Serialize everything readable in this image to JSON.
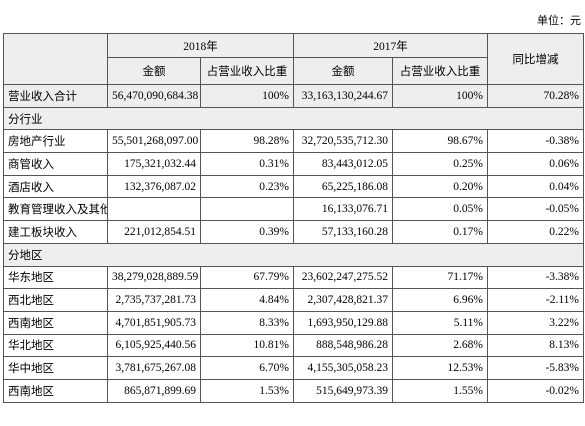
{
  "unit": "单位：元",
  "table": {
    "header": {
      "item": null,
      "year_2018": "2018年",
      "year_2017": "2017年",
      "yoy": "同比增减",
      "amount_2018": "金额",
      "share_2018": "占营业收入比重",
      "amount_2017": "金额",
      "share_2017": "占营业收入比重"
    },
    "rows": [
      [
        "营业收入合计",
        "56,470,090,684.38",
        "100%",
        "33,163,130,244.67",
        "100%",
        "70.28%"
      ],
      [
        "分行业"
      ],
      [
        "房地产行业",
        "55,501,268,097.00",
        "98.28%",
        "32,720,535,712.30",
        "98.67%",
        "-0.38%"
      ],
      [
        "商管收入",
        "175,321,032.44",
        "0.31%",
        "83,443,012.05",
        "0.25%",
        "0.06%"
      ],
      [
        "酒店收入",
        "132,376,087.02",
        "0.23%",
        "65,225,186.08",
        "0.20%",
        "0.04%"
      ],
      [
        "教育管理收入及其他",
        null,
        null,
        "16,133,076.71",
        "0.05%",
        "-0.05%"
      ],
      [
        "建工板块收入",
        "221,012,854.51",
        "0.39%",
        "57,133,160.28",
        "0.17%",
        "0.22%"
      ],
      [
        "分地区"
      ],
      [
        "华东地区",
        "38,279,028,889.59",
        "67.79%",
        "23,602,247,275.52",
        "71.17%",
        "-3.38%"
      ],
      [
        "西北地区",
        "2,735,737,281.73",
        "4.84%",
        "2,307,428,821.37",
        "6.96%",
        "-2.11%"
      ],
      [
        "西南地区",
        "4,701,851,905.73",
        "8.33%",
        "1,693,950,129.88",
        "5.11%",
        "3.22%"
      ],
      [
        "华北地区",
        "6,105,925,440.56",
        "10.81%",
        "888,548,986.28",
        "2.68%",
        "8.13%"
      ],
      [
        "华中地区",
        "3,781,675,267.08",
        "6.70%",
        "4,155,305,058.23",
        "12.53%",
        "-5.83%"
      ],
      [
        "西南地区",
        "865,871,899.69",
        "1.53%",
        "515,649,973.39",
        "1.55%",
        "-0.02%"
      ]
    ]
  }
}
